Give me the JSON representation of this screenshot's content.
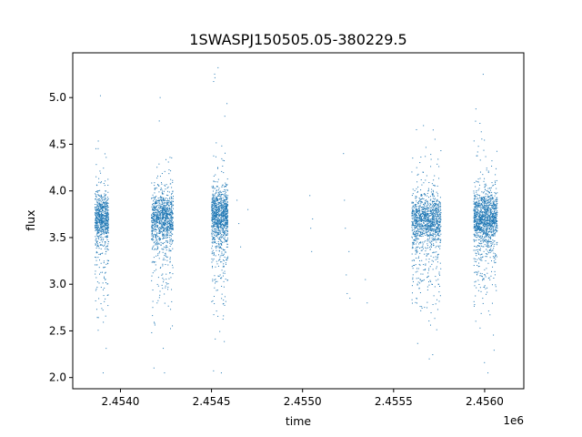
{
  "chart_data": {
    "type": "scatter",
    "title": "1SWASPJ150505.05-380229.5",
    "xlabel": "time",
    "ylabel": "flux",
    "x_offset_label": "1e6",
    "xlim": [
      2453738,
      2456215
    ],
    "ylim": [
      1.88,
      5.48
    ],
    "x_ticks": [
      2453500,
      2454000,
      2454500,
      2455000,
      2455500,
      2456000
    ],
    "x_tick_labels": [
      "",
      "2.4540",
      "2.4545",
      "2.4550",
      "2.4555",
      "2.4560"
    ],
    "y_ticks": [
      2.0,
      2.5,
      3.0,
      3.5,
      4.0,
      4.5,
      5.0
    ],
    "y_tick_labels": [
      "2.0",
      "2.5",
      "3.0",
      "3.5",
      "4.0",
      "4.5",
      "5.0"
    ],
    "grid": false,
    "legend": "none",
    "marker_color": "#1f77b4",
    "clusters": [
      {
        "x_start": 2453860,
        "x_end": 2453935,
        "median": 3.72,
        "count": 750,
        "min": 2.05,
        "max": 5.02
      },
      {
        "x_start": 2454170,
        "x_end": 2454290,
        "median": 3.72,
        "count": 1000,
        "min": 2.05,
        "max": 5.0
      },
      {
        "x_start": 2454500,
        "x_end": 2454590,
        "median": 3.75,
        "count": 1000,
        "min": 2.05,
        "max": 5.32
      },
      {
        "x_start": 2455600,
        "x_end": 2455760,
        "median": 3.7,
        "count": 1200,
        "min": 2.2,
        "max": 4.7
      },
      {
        "x_start": 2455940,
        "x_end": 2456070,
        "median": 3.72,
        "count": 1300,
        "min": 2.05,
        "max": 5.25
      }
    ],
    "isolated_points": [
      {
        "x": 2454640,
        "y": 3.9
      },
      {
        "x": 2454650,
        "y": 3.65
      },
      {
        "x": 2454660,
        "y": 3.4
      },
      {
        "x": 2454700,
        "y": 3.8
      },
      {
        "x": 2455040,
        "y": 3.95
      },
      {
        "x": 2455045,
        "y": 3.6
      },
      {
        "x": 2455050,
        "y": 3.35
      },
      {
        "x": 2455055,
        "y": 3.7
      },
      {
        "x": 2455225,
        "y": 4.4
      },
      {
        "x": 2455230,
        "y": 3.9
      },
      {
        "x": 2455235,
        "y": 3.6
      },
      {
        "x": 2455240,
        "y": 3.1
      },
      {
        "x": 2455245,
        "y": 2.9
      },
      {
        "x": 2455255,
        "y": 3.35
      },
      {
        "x": 2455260,
        "y": 2.85
      },
      {
        "x": 2455345,
        "y": 3.05
      },
      {
        "x": 2455355,
        "y": 2.8
      }
    ]
  }
}
